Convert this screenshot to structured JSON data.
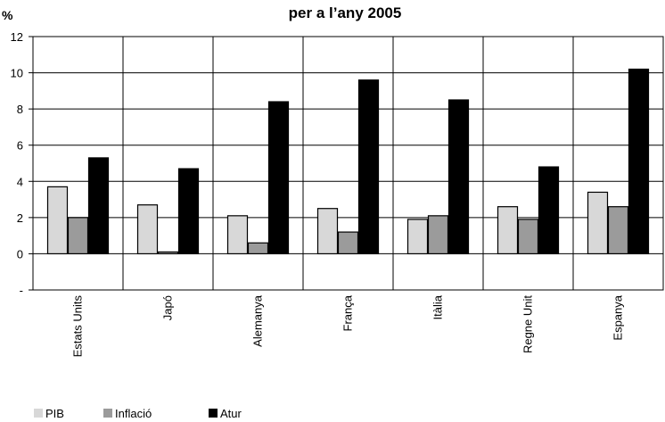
{
  "chart_data": {
    "type": "bar",
    "title": "per a l’any 2005",
    "ylabel": "%",
    "xlabel": "",
    "ylim": [
      -2,
      12
    ],
    "yticks": [
      "12",
      "10",
      "8",
      "6",
      "4",
      "2",
      "0",
      "-"
    ],
    "ytick_values": [
      12,
      10,
      8,
      6,
      4,
      2,
      0,
      -2
    ],
    "grid": "horizontal and vertical category separators",
    "legend_position": "bottom-left",
    "categories": [
      "Estats Units",
      "Japó",
      "Alemanya",
      "França",
      "Itàlia",
      "Regne Unit",
      "Espanya"
    ],
    "series": [
      {
        "name": "PIB",
        "color": "#d8d8d8",
        "values": [
          3.7,
          2.7,
          2.1,
          2.5,
          1.9,
          2.6,
          3.4
        ]
      },
      {
        "name": "Inflació",
        "color": "#9b9b9b",
        "values": [
          2.0,
          0.1,
          0.6,
          1.2,
          2.1,
          1.9,
          2.6
        ]
      },
      {
        "name": "Atur",
        "color": "#000000",
        "values": [
          5.3,
          4.7,
          8.4,
          9.6,
          8.5,
          4.8,
          10.2
        ]
      }
    ]
  }
}
